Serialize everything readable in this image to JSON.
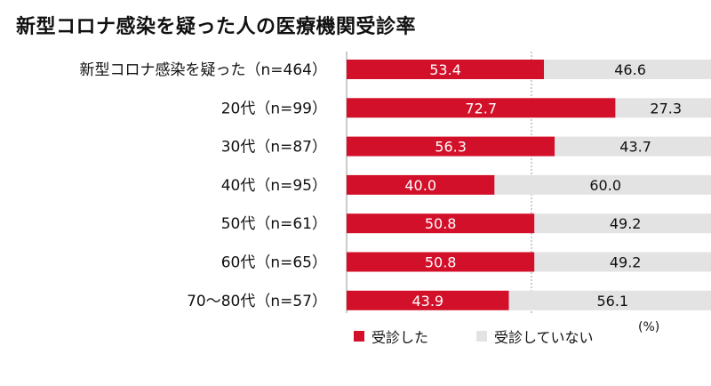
{
  "chart_data": {
    "type": "bar",
    "orientation": "horizontal",
    "stacked": true,
    "title": "新型コロナ感染を疑った人の医療機関受診率",
    "unit": "(%)",
    "categories": [
      "新型コロナ感染を疑った（n=464）",
      "20代（n=99）",
      "30代（n=87）",
      "40代（n=95）",
      "50代（n=61）",
      "60代（n=65）",
      "70～80代（n=57）"
    ],
    "series": [
      {
        "name": "受診した",
        "color": "#d3102a",
        "values": [
          53.4,
          72.7,
          56.3,
          40.0,
          50.8,
          50.8,
          43.9
        ]
      },
      {
        "name": "受診していない",
        "color": "#e3e3e3",
        "values": [
          46.6,
          27.3,
          43.7,
          60.0,
          49.2,
          49.2,
          56.1
        ]
      }
    ],
    "xlim": [
      0,
      100
    ],
    "grid": false,
    "legend_position": "bottom-left"
  }
}
